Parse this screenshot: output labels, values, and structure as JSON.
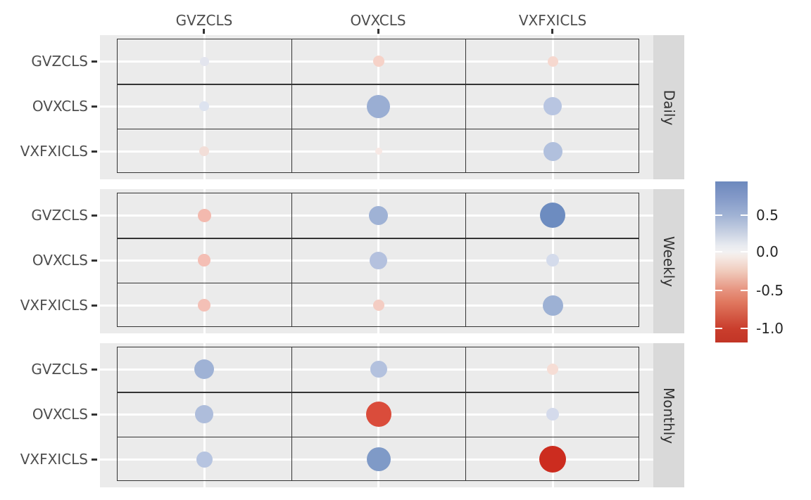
{
  "chart_data": {
    "type": "heatmap",
    "subtype": "faceted-correlation-bubble-matrix",
    "columns": [
      "GVZCLS",
      "OVXCLS",
      "VXFXICLS"
    ],
    "rows": [
      "GVZCLS",
      "OVXCLS",
      "VXFXICLS"
    ],
    "facet_labels": [
      "Daily",
      "Weekly",
      "Monthly"
    ],
    "legend": {
      "ticks": [
        "0.5",
        "0.0",
        "-0.5",
        "-1.0"
      ],
      "tick_values": [
        0.5,
        0.0,
        -0.5,
        -1.0
      ],
      "gradient_high": "#6c89bd",
      "gradient_mid": "#f2f1f2",
      "gradient_low": "#c23526",
      "position": "right"
    },
    "panel_background": "#ebebeb",
    "strip_background": "#d9d9d9",
    "grid_color": "#ffffff",
    "cell_border_color": "#343434",
    "axis_text_color": "#4d4d4d",
    "facets": [
      {
        "label": "Daily",
        "dots": [
          {
            "row": "GVZCLS",
            "col": "GVZCLS",
            "value": 0.08,
            "radius_px": 6.5,
            "color": "#e3e5ee"
          },
          {
            "row": "GVZCLS",
            "col": "OVXCLS",
            "value": -0.15,
            "radius_px": 8,
            "color": "#f6d2c8"
          },
          {
            "row": "GVZCLS",
            "col": "VXFXICLS",
            "value": -0.12,
            "radius_px": 7.5,
            "color": "#f6d8cf"
          },
          {
            "row": "OVXCLS",
            "col": "GVZCLS",
            "value": 0.1,
            "radius_px": 7,
            "color": "#dde3ef"
          },
          {
            "row": "OVXCLS",
            "col": "OVXCLS",
            "value": 0.55,
            "radius_px": 16.5,
            "color": "#9aaed3"
          },
          {
            "row": "OVXCLS",
            "col": "VXFXICLS",
            "value": 0.38,
            "radius_px": 13,
            "color": "#b8c5e1"
          },
          {
            "row": "VXFXICLS",
            "col": "GVZCLS",
            "value": -0.1,
            "radius_px": 7,
            "color": "#f2ded8"
          },
          {
            "row": "VXFXICLS",
            "col": "OVXCLS",
            "value": -0.05,
            "radius_px": 5,
            "color": "#f7e8e4"
          },
          {
            "row": "VXFXICLS",
            "col": "VXFXICLS",
            "value": 0.42,
            "radius_px": 13.5,
            "color": "#b1c0dd"
          }
        ]
      },
      {
        "label": "Weekly",
        "dots": [
          {
            "row": "GVZCLS",
            "col": "GVZCLS",
            "value": -0.3,
            "radius_px": 9.5,
            "color": "#f3b9ae"
          },
          {
            "row": "GVZCLS",
            "col": "OVXCLS",
            "value": 0.5,
            "radius_px": 13.5,
            "color": "#9fb2d5"
          },
          {
            "row": "GVZCLS",
            "col": "VXFXICLS",
            "value": 0.75,
            "radius_px": 18,
            "color": "#6d8cc0"
          },
          {
            "row": "OVXCLS",
            "col": "GVZCLS",
            "value": -0.28,
            "radius_px": 9,
            "color": "#f4beb4"
          },
          {
            "row": "OVXCLS",
            "col": "OVXCLS",
            "value": 0.4,
            "radius_px": 12.5,
            "color": "#b4c1de"
          },
          {
            "row": "OVXCLS",
            "col": "VXFXICLS",
            "value": 0.18,
            "radius_px": 9,
            "color": "#d4dbeb"
          },
          {
            "row": "VXFXICLS",
            "col": "GVZCLS",
            "value": -0.26,
            "radius_px": 9,
            "color": "#f4c0b6"
          },
          {
            "row": "VXFXICLS",
            "col": "OVXCLS",
            "value": -0.2,
            "radius_px": 8,
            "color": "#f4cdc3"
          },
          {
            "row": "VXFXICLS",
            "col": "VXFXICLS",
            "value": 0.52,
            "radius_px": 14.5,
            "color": "#9db1d4"
          }
        ]
      },
      {
        "label": "Monthly",
        "dots": [
          {
            "row": "GVZCLS",
            "col": "GVZCLS",
            "value": 0.5,
            "radius_px": 14,
            "color": "#9fb2d5"
          },
          {
            "row": "GVZCLS",
            "col": "OVXCLS",
            "value": 0.4,
            "radius_px": 12,
            "color": "#b3c1de"
          },
          {
            "row": "GVZCLS",
            "col": "VXFXICLS",
            "value": -0.12,
            "radius_px": 8,
            "color": "#f6ddd5"
          },
          {
            "row": "OVXCLS",
            "col": "GVZCLS",
            "value": 0.45,
            "radius_px": 13,
            "color": "#aebddb"
          },
          {
            "row": "OVXCLS",
            "col": "OVXCLS",
            "value": -0.8,
            "radius_px": 18,
            "color": "#da4c3b"
          },
          {
            "row": "OVXCLS",
            "col": "VXFXICLS",
            "value": 0.15,
            "radius_px": 9,
            "color": "#d4daeb"
          },
          {
            "row": "VXFXICLS",
            "col": "GVZCLS",
            "value": 0.38,
            "radius_px": 11.5,
            "color": "#b6c4e0"
          },
          {
            "row": "VXFXICLS",
            "col": "OVXCLS",
            "value": 0.65,
            "radius_px": 17,
            "color": "#7f9ac7"
          },
          {
            "row": "VXFXICLS",
            "col": "VXFXICLS",
            "value": -1.0,
            "radius_px": 19,
            "color": "#cc2c1f"
          }
        ]
      }
    ]
  }
}
